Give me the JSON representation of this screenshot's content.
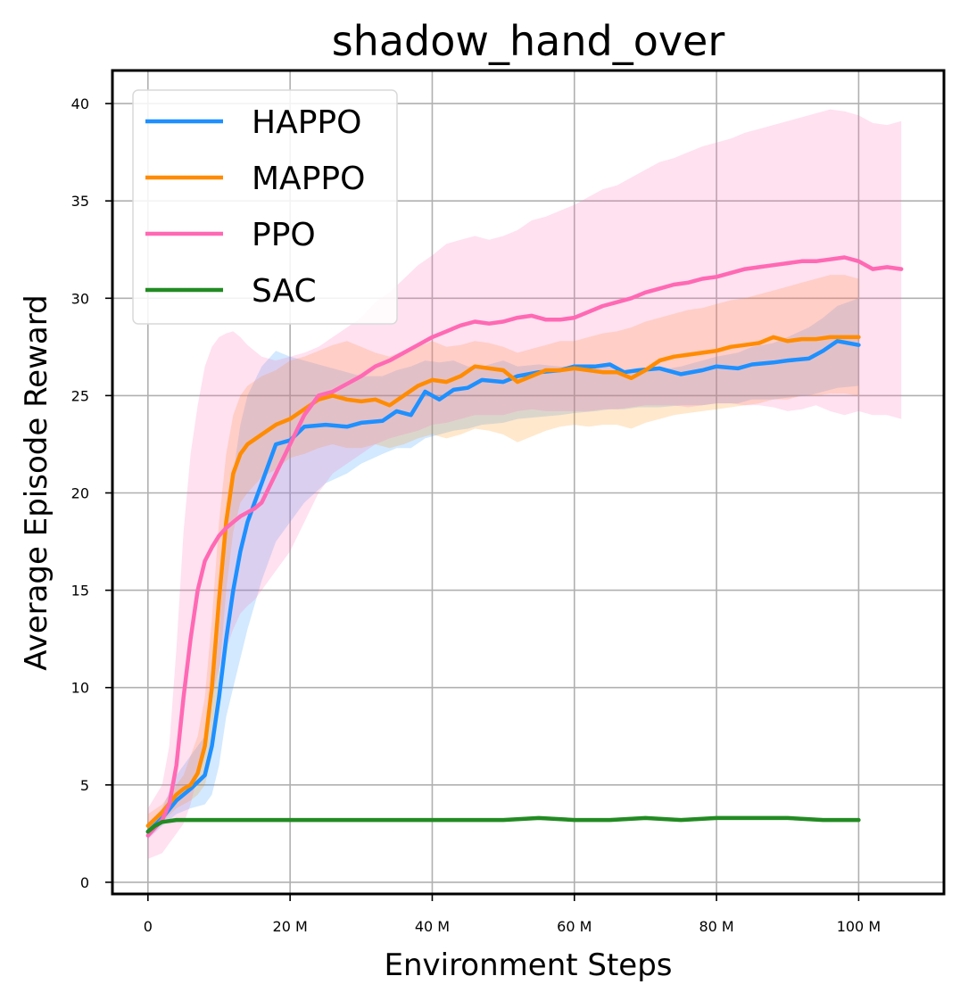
{
  "chart_data": {
    "type": "line",
    "title": "shadow_hand_over",
    "xlabel": "Environment Steps",
    "ylabel": "Average Episode Reward",
    "xlim": [
      -5,
      112
    ],
    "ylim": [
      -0.6,
      41.7
    ],
    "xticks": [
      {
        "value": 0,
        "label": "0"
      },
      {
        "value": 20,
        "label": "20 M"
      },
      {
        "value": 40,
        "label": "40 M"
      },
      {
        "value": 60,
        "label": "60 M"
      },
      {
        "value": 80,
        "label": "80 M"
      },
      {
        "value": 100,
        "label": "100 M"
      }
    ],
    "yticks": [
      {
        "value": 0,
        "label": "0"
      },
      {
        "value": 5,
        "label": "5"
      },
      {
        "value": 10,
        "label": "10"
      },
      {
        "value": 15,
        "label": "15"
      },
      {
        "value": 20,
        "label": "20"
      },
      {
        "value": 25,
        "label": "25"
      },
      {
        "value": 30,
        "label": "30"
      },
      {
        "value": 35,
        "label": "35"
      },
      {
        "value": 40,
        "label": "40"
      }
    ],
    "grid": true,
    "legend_position": "top-left",
    "series": [
      {
        "name": "HAPPO",
        "color": "#1e90ff",
        "x": [
          0,
          2,
          4,
          6,
          8,
          9,
          10,
          11,
          12,
          13,
          14,
          16,
          18,
          20,
          22,
          25,
          28,
          30,
          33,
          35,
          37,
          39,
          41,
          43,
          45,
          47,
          50,
          52,
          55,
          58,
          60,
          63,
          65,
          67,
          69,
          72,
          75,
          78,
          80,
          83,
          85,
          88,
          90,
          93,
          95,
          97,
          100
        ],
        "y": [
          2.6,
          3.3,
          4.2,
          4.8,
          5.5,
          7.0,
          9.5,
          12.5,
          15.0,
          17.0,
          18.5,
          20.5,
          22.5,
          22.7,
          23.4,
          23.5,
          23.4,
          23.6,
          23.7,
          24.2,
          24.0,
          25.2,
          24.8,
          25.3,
          25.4,
          25.8,
          25.7,
          26.0,
          26.2,
          26.3,
          26.5,
          26.5,
          26.6,
          26.2,
          26.3,
          26.4,
          26.1,
          26.3,
          26.5,
          26.4,
          26.6,
          26.7,
          26.8,
          26.9,
          27.3,
          27.8,
          27.6
        ],
        "upper": [
          3.0,
          3.8,
          5.5,
          6.5,
          7.5,
          9.0,
          13.0,
          17.5,
          21.0,
          23.5,
          25.0,
          26.5,
          27.3,
          27.0,
          26.8,
          26.5,
          26.2,
          26.0,
          26.0,
          26.3,
          26.5,
          26.8,
          26.7,
          26.8,
          26.5,
          26.5,
          26.8,
          26.5,
          26.6,
          26.5,
          26.5,
          26.4,
          26.5,
          26.2,
          26.2,
          26.3,
          26.5,
          26.8,
          27.0,
          27.2,
          27.5,
          27.7,
          28.0,
          28.5,
          29.0,
          29.6,
          30.0
        ],
        "lower": [
          2.2,
          2.9,
          3.5,
          3.8,
          4.0,
          4.5,
          6.0,
          8.5,
          10.0,
          11.5,
          13.0,
          15.5,
          17.5,
          18.5,
          19.5,
          20.5,
          21.0,
          21.5,
          22.0,
          22.3,
          22.3,
          22.8,
          23.0,
          23.2,
          23.3,
          23.5,
          23.6,
          23.8,
          23.9,
          24.0,
          24.1,
          24.2,
          24.3,
          24.3,
          24.4,
          24.4,
          24.5,
          24.5,
          24.6,
          24.6,
          24.8,
          24.8,
          24.9,
          25.0,
          25.2,
          25.4,
          25.5
        ]
      },
      {
        "name": "MAPPO",
        "color": "#ff8c00",
        "x": [
          0,
          2,
          4,
          5,
          6,
          7,
          8,
          9,
          10,
          11,
          12,
          13,
          14,
          16,
          18,
          20,
          22,
          24,
          26,
          28,
          30,
          32,
          34,
          36,
          38,
          40,
          42,
          44,
          46,
          48,
          50,
          52,
          54,
          56,
          58,
          60,
          62,
          64,
          66,
          68,
          70,
          72,
          74,
          76,
          78,
          80,
          82,
          84,
          86,
          88,
          90,
          92,
          94,
          96,
          98,
          100
        ],
        "y": [
          2.9,
          3.6,
          4.5,
          4.8,
          5.0,
          5.6,
          7.0,
          10.0,
          14.5,
          18.5,
          21.0,
          22.0,
          22.5,
          23.0,
          23.5,
          23.8,
          24.3,
          24.8,
          25.0,
          24.8,
          24.7,
          24.8,
          24.5,
          25.0,
          25.5,
          25.8,
          25.7,
          26.0,
          26.5,
          26.4,
          26.3,
          25.7,
          26.0,
          26.3,
          26.3,
          26.4,
          26.3,
          26.2,
          26.2,
          25.9,
          26.3,
          26.8,
          27.0,
          27.1,
          27.2,
          27.3,
          27.5,
          27.6,
          27.7,
          28.0,
          27.8,
          27.9,
          27.9,
          28.0,
          28.0,
          28.0
        ],
        "upper": [
          3.5,
          4.0,
          5.0,
          5.5,
          6.5,
          7.5,
          9.5,
          13.5,
          18.5,
          22.0,
          24.0,
          25.0,
          25.5,
          26.0,
          26.3,
          26.8,
          27.0,
          27.3,
          27.6,
          27.8,
          27.5,
          27.2,
          27.0,
          27.3,
          27.5,
          27.8,
          27.5,
          27.6,
          27.8,
          27.7,
          27.5,
          27.2,
          27.4,
          27.6,
          27.8,
          27.8,
          28.0,
          28.2,
          28.3,
          28.5,
          28.8,
          29.0,
          29.2,
          29.4,
          29.5,
          29.7,
          29.9,
          30.0,
          30.2,
          30.4,
          30.6,
          30.8,
          31.0,
          31.2,
          31.2,
          31.0
        ],
        "lower": [
          2.4,
          3.1,
          3.8,
          4.0,
          4.2,
          4.5,
          5.0,
          6.5,
          10.5,
          15.0,
          18.0,
          19.5,
          20.0,
          20.8,
          21.2,
          21.8,
          22.0,
          22.3,
          22.5,
          22.3,
          22.3,
          22.5,
          22.3,
          22.5,
          22.8,
          23.0,
          22.8,
          23.0,
          23.3,
          23.2,
          23.0,
          22.6,
          22.9,
          23.2,
          23.4,
          23.5,
          23.4,
          23.5,
          23.5,
          23.3,
          23.6,
          23.8,
          24.0,
          24.1,
          24.2,
          24.3,
          24.4,
          24.5,
          24.6,
          24.8,
          24.8,
          25.0,
          25.0,
          25.1,
          25.1,
          25.0
        ]
      },
      {
        "name": "PPO",
        "color": "#ff69b4",
        "x": [
          0,
          2,
          3,
          4,
          5,
          6,
          7,
          8,
          9,
          10,
          11,
          12,
          13,
          14,
          15,
          16,
          18,
          20,
          22,
          24,
          26,
          28,
          30,
          32,
          34,
          36,
          38,
          40,
          42,
          44,
          46,
          48,
          50,
          52,
          54,
          56,
          58,
          60,
          62,
          64,
          66,
          68,
          70,
          72,
          74,
          76,
          78,
          80,
          82,
          84,
          86,
          88,
          90,
          92,
          94,
          96,
          98,
          100,
          102,
          104,
          106
        ],
        "y": [
          2.4,
          3.2,
          4.0,
          6.0,
          9.5,
          12.5,
          15.0,
          16.5,
          17.2,
          17.8,
          18.2,
          18.5,
          18.8,
          19.0,
          19.2,
          19.5,
          21.0,
          22.5,
          24.0,
          25.0,
          25.2,
          25.6,
          26.0,
          26.5,
          26.8,
          27.2,
          27.6,
          28.0,
          28.3,
          28.6,
          28.8,
          28.7,
          28.8,
          29.0,
          29.1,
          28.9,
          28.9,
          29.0,
          29.3,
          29.6,
          29.8,
          30.0,
          30.3,
          30.5,
          30.7,
          30.8,
          31.0,
          31.1,
          31.3,
          31.5,
          31.6,
          31.7,
          31.8,
          31.9,
          31.9,
          32.0,
          32.1,
          31.9,
          31.5,
          31.6,
          31.5
        ],
        "upper": [
          3.8,
          5.0,
          7.0,
          12.0,
          18.0,
          22.0,
          24.5,
          26.5,
          27.5,
          28.0,
          28.2,
          28.3,
          28.0,
          27.6,
          27.3,
          27.0,
          26.8,
          27.0,
          27.2,
          27.5,
          28.0,
          28.5,
          29.0,
          29.8,
          30.3,
          31.0,
          31.7,
          32.2,
          32.8,
          33.0,
          33.2,
          33.0,
          33.2,
          33.5,
          34.0,
          34.2,
          34.5,
          34.8,
          35.2,
          35.6,
          35.8,
          36.2,
          36.6,
          37.0,
          37.2,
          37.5,
          37.8,
          38.0,
          38.2,
          38.5,
          38.7,
          38.9,
          39.1,
          39.3,
          39.5,
          39.7,
          39.6,
          39.4,
          39.0,
          38.9,
          39.1
        ],
        "lower": [
          1.2,
          1.5,
          2.0,
          2.5,
          3.0,
          4.0,
          5.5,
          7.5,
          9.5,
          11.0,
          12.0,
          13.0,
          13.8,
          14.2,
          14.5,
          15.0,
          16.0,
          17.0,
          18.5,
          20.0,
          21.0,
          21.5,
          22.0,
          22.5,
          22.8,
          23.0,
          23.2,
          23.5,
          23.6,
          23.8,
          24.0,
          24.0,
          24.0,
          24.2,
          24.3,
          24.2,
          24.2,
          24.2,
          24.2,
          24.3,
          24.3,
          24.4,
          24.5,
          24.5,
          24.5,
          24.4,
          24.5,
          24.6,
          24.6,
          24.5,
          24.5,
          24.4,
          24.2,
          24.3,
          24.5,
          24.2,
          24.0,
          24.2,
          24.0,
          24.0,
          23.8
        ]
      },
      {
        "name": "SAC",
        "color": "#228b22",
        "x": [
          0,
          1,
          2,
          4,
          6,
          8,
          10,
          15,
          20,
          25,
          30,
          35,
          40,
          45,
          50,
          55,
          60,
          65,
          70,
          75,
          80,
          85,
          90,
          95,
          100
        ],
        "y": [
          2.6,
          2.9,
          3.1,
          3.2,
          3.2,
          3.2,
          3.2,
          3.2,
          3.2,
          3.2,
          3.2,
          3.2,
          3.2,
          3.2,
          3.2,
          3.3,
          3.2,
          3.2,
          3.3,
          3.2,
          3.3,
          3.3,
          3.3,
          3.2,
          3.2
        ],
        "upper": [
          2.8,
          3.0,
          3.2,
          3.3,
          3.3,
          3.3,
          3.3,
          3.3,
          3.3,
          3.3,
          3.3,
          3.3,
          3.3,
          3.3,
          3.3,
          3.4,
          3.3,
          3.3,
          3.4,
          3.3,
          3.4,
          3.4,
          3.4,
          3.3,
          3.3
        ],
        "lower": [
          2.4,
          2.8,
          3.0,
          3.1,
          3.1,
          3.1,
          3.1,
          3.1,
          3.1,
          3.1,
          3.1,
          3.1,
          3.1,
          3.1,
          3.1,
          3.2,
          3.1,
          3.1,
          3.2,
          3.1,
          3.2,
          3.2,
          3.2,
          3.1,
          3.1
        ]
      }
    ]
  }
}
